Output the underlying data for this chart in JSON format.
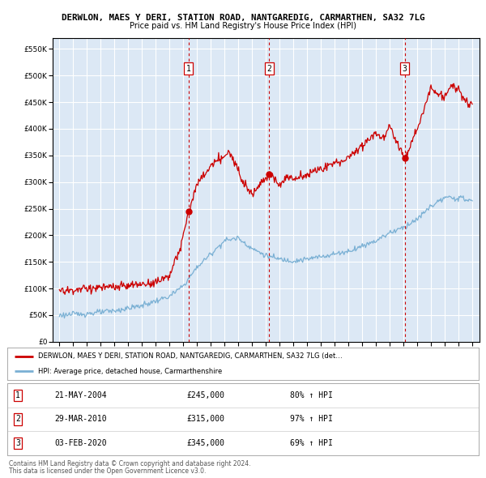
{
  "title": "DERWLON, MAES Y DERI, STATION ROAD, NANTGAREDIG, CARMARTHEN, SA32 7LG",
  "subtitle": "Price paid vs. HM Land Registry's House Price Index (HPI)",
  "legend_entry1": "DERWLON, MAES Y DERI, STATION ROAD, NANTGAREDIG, CARMARTHEN, SA32 7LG (det…",
  "legend_entry2": "HPI: Average price, detached house, Carmarthenshire",
  "footer1": "Contains HM Land Registry data © Crown copyright and database right 2024.",
  "footer2": "This data is licensed under the Open Government Licence v3.0.",
  "sale_markers": [
    {
      "num": 1,
      "date": "21-MAY-2004",
      "price": "£245,000",
      "pct": "80% ↑ HPI",
      "x_year": 2004.38,
      "y_val": 245000
    },
    {
      "num": 2,
      "date": "29-MAR-2010",
      "price": "£315,000",
      "pct": "97% ↑ HPI",
      "x_year": 2010.24,
      "y_val": 315000
    },
    {
      "num": 3,
      "date": "03-FEB-2020",
      "price": "£345,000",
      "pct": "69% ↑ HPI",
      "x_year": 2020.09,
      "y_val": 345000
    }
  ],
  "ylim": [
    0,
    570000
  ],
  "yticks": [
    0,
    50000,
    100000,
    150000,
    200000,
    250000,
    300000,
    350000,
    400000,
    450000,
    500000,
    550000
  ],
  "xlim_start": 1994.5,
  "xlim_end": 2025.5,
  "xticks": [
    1995,
    1996,
    1997,
    1998,
    1999,
    2000,
    2001,
    2002,
    2003,
    2004,
    2005,
    2006,
    2007,
    2008,
    2009,
    2010,
    2011,
    2012,
    2013,
    2014,
    2015,
    2016,
    2017,
    2018,
    2019,
    2020,
    2021,
    2022,
    2023,
    2024,
    2025
  ],
  "bg_color": "#dce8f5",
  "red_color": "#cc0000",
  "blue_color": "#7ab0d4",
  "marker_line_color": "#cc0000",
  "grid_color": "#ffffff"
}
